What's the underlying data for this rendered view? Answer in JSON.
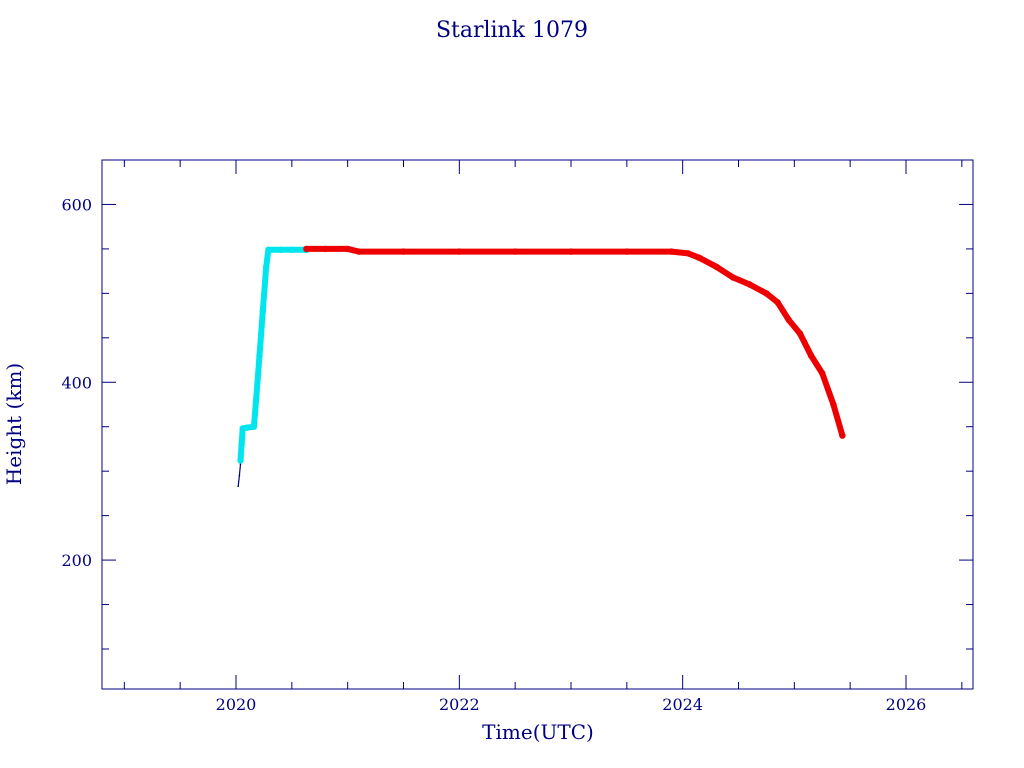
{
  "chart_data": {
    "type": "scatter",
    "title": "Starlink 1079",
    "xlabel": "Time(UTC)",
    "ylabel": "Height (km)",
    "xlim": [
      2018.8,
      2026.6
    ],
    "ylim": [
      55,
      650
    ],
    "x_ticks": [
      2020,
      2022,
      2024,
      2026
    ],
    "x_tick_labels": [
      "2020",
      "2022",
      "2024",
      "2026"
    ],
    "y_ticks": [
      200,
      400,
      600
    ],
    "y_tick_labels": [
      "200",
      "400",
      "600"
    ],
    "grid": false,
    "legend": "none",
    "colors": {
      "axis": "#000080",
      "orbit_raising": "#00e5ee",
      "operational": "#ee0000",
      "early": "#000080"
    },
    "series": [
      {
        "color_key": "early",
        "points": [
          [
            2020.02,
            283
          ],
          [
            2020.03,
            295
          ],
          [
            2020.04,
            308
          ]
        ]
      },
      {
        "color_key": "orbit_raising",
        "points": [
          [
            2020.04,
            312
          ],
          [
            2020.05,
            330
          ],
          [
            2020.06,
            348
          ],
          [
            2020.1,
            349
          ],
          [
            2020.16,
            350
          ],
          [
            2020.18,
            380
          ],
          [
            2020.21,
            430
          ],
          [
            2020.24,
            480
          ],
          [
            2020.27,
            530
          ],
          [
            2020.29,
            549
          ],
          [
            2020.4,
            549
          ],
          [
            2020.5,
            549
          ],
          [
            2020.63,
            549
          ]
        ]
      },
      {
        "color_key": "operational",
        "points": [
          [
            2020.63,
            550
          ],
          [
            2020.8,
            550
          ],
          [
            2021.0,
            550
          ],
          [
            2021.1,
            547
          ],
          [
            2021.5,
            547
          ],
          [
            2022.0,
            547
          ],
          [
            2022.5,
            547
          ],
          [
            2023.0,
            547
          ],
          [
            2023.5,
            547
          ],
          [
            2023.9,
            547
          ],
          [
            2024.05,
            545
          ],
          [
            2024.15,
            540
          ],
          [
            2024.3,
            530
          ],
          [
            2024.45,
            518
          ],
          [
            2024.6,
            510
          ],
          [
            2024.75,
            500
          ],
          [
            2024.85,
            490
          ],
          [
            2024.95,
            470
          ],
          [
            2025.05,
            455
          ],
          [
            2025.15,
            430
          ],
          [
            2025.25,
            410
          ],
          [
            2025.35,
            375
          ],
          [
            2025.43,
            340
          ]
        ]
      }
    ]
  }
}
